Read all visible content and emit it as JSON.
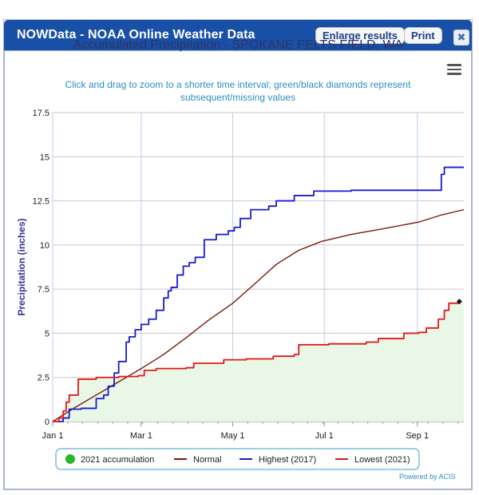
{
  "window": {
    "title": "NOWData - NOAA Online Weather Data",
    "enlarge_label": "Enlarge results",
    "print_label": "Print",
    "close_label": "✖"
  },
  "powered_by": "Powered by ACIS",
  "chart_data": {
    "type": "area",
    "title": "Accumulated Precipitation - SPOKANE FELTS FIELD, WA",
    "subtitle": "Click and drag to zoom to a shorter time interval; green/black diamonds represent subsequent/missing values",
    "xlabel": "",
    "ylabel": "Precipitation (inches)",
    "x_unit": "day of year",
    "xlim": [
      1,
      275
    ],
    "ylim": [
      0,
      17.5
    ],
    "yticks": [
      0,
      2.5,
      5,
      7.5,
      10,
      12.5,
      15,
      17.5
    ],
    "ytick_labels": [
      "0",
      "2.5",
      "5",
      "7.5",
      "10",
      "12.5",
      "15",
      "17.5"
    ],
    "xticks": [
      1,
      60,
      121,
      182,
      244
    ],
    "xtick_labels": [
      "Jan 1",
      "Mar 1",
      "May 1",
      "Jul 1",
      "Sep 1"
    ],
    "grid": true,
    "legend_position": "bottom",
    "series": [
      {
        "name": "2021 accumulation",
        "style": "area",
        "color": "#2bb52b",
        "fill": "#e9f7e6",
        "points": [
          [
            1,
            0
          ],
          [
            5,
            0.2
          ],
          [
            8,
            0.6
          ],
          [
            10,
            1.1
          ],
          [
            12,
            1.5
          ],
          [
            18,
            2.4
          ],
          [
            30,
            2.5
          ],
          [
            45,
            2.55
          ],
          [
            58,
            2.6
          ],
          [
            62,
            2.9
          ],
          [
            70,
            3.0
          ],
          [
            90,
            3.05
          ],
          [
            95,
            3.3
          ],
          [
            115,
            3.5
          ],
          [
            130,
            3.55
          ],
          [
            148,
            3.7
          ],
          [
            162,
            3.8
          ],
          [
            165,
            4.35
          ],
          [
            185,
            4.4
          ],
          [
            210,
            4.5
          ],
          [
            218,
            4.7
          ],
          [
            235,
            5.0
          ],
          [
            245,
            5.05
          ],
          [
            250,
            5.3
          ],
          [
            258,
            5.8
          ],
          [
            262,
            6.3
          ],
          [
            265,
            6.7
          ],
          [
            272,
            6.8
          ]
        ]
      },
      {
        "name": "Normal",
        "style": "line",
        "color": "#7a1a0a",
        "points": [
          [
            1,
            0
          ],
          [
            15,
            0.75
          ],
          [
            30,
            1.5
          ],
          [
            45,
            2.25
          ],
          [
            60,
            3.0
          ],
          [
            75,
            3.8
          ],
          [
            90,
            4.75
          ],
          [
            105,
            5.75
          ],
          [
            121,
            6.7
          ],
          [
            135,
            7.75
          ],
          [
            150,
            8.9
          ],
          [
            165,
            9.7
          ],
          [
            180,
            10.2
          ],
          [
            200,
            10.6
          ],
          [
            220,
            10.9
          ],
          [
            245,
            11.3
          ],
          [
            260,
            11.7
          ],
          [
            275,
            12.0
          ]
        ]
      },
      {
        "name": "Highest (2017)",
        "style": "line",
        "color": "#1a1ad0",
        "points": [
          [
            1,
            0
          ],
          [
            8,
            0.2
          ],
          [
            12,
            0.7
          ],
          [
            20,
            0.75
          ],
          [
            30,
            1.3
          ],
          [
            35,
            1.5
          ],
          [
            38,
            2.0
          ],
          [
            42,
            2.75
          ],
          [
            45,
            3.4
          ],
          [
            48,
            3.4
          ],
          [
            50,
            4.5
          ],
          [
            52,
            4.8
          ],
          [
            56,
            5.2
          ],
          [
            60,
            5.5
          ],
          [
            65,
            5.8
          ],
          [
            70,
            6.3
          ],
          [
            75,
            7.0
          ],
          [
            78,
            7.4
          ],
          [
            80,
            7.6
          ],
          [
            84,
            8.3
          ],
          [
            88,
            8.8
          ],
          [
            92,
            9.0
          ],
          [
            96,
            9.3
          ],
          [
            102,
            10.3
          ],
          [
            110,
            10.6
          ],
          [
            118,
            10.8
          ],
          [
            122,
            11.0
          ],
          [
            126,
            11.5
          ],
          [
            133,
            12.0
          ],
          [
            145,
            12.2
          ],
          [
            150,
            12.5
          ],
          [
            162,
            12.8
          ],
          [
            175,
            13.05
          ],
          [
            185,
            13.05
          ],
          [
            200,
            13.1
          ],
          [
            230,
            13.1
          ],
          [
            258,
            13.1
          ],
          [
            260,
            14.0
          ],
          [
            262,
            14.4
          ],
          [
            275,
            14.4
          ]
        ]
      },
      {
        "name": "Lowest (2021)",
        "style": "line",
        "color": "#e01818",
        "points": [
          [
            1,
            0
          ],
          [
            5,
            0.2
          ],
          [
            8,
            0.6
          ],
          [
            10,
            1.1
          ],
          [
            12,
            1.5
          ],
          [
            18,
            2.4
          ],
          [
            30,
            2.5
          ],
          [
            45,
            2.55
          ],
          [
            58,
            2.6
          ],
          [
            62,
            2.9
          ],
          [
            70,
            3.0
          ],
          [
            90,
            3.05
          ],
          [
            95,
            3.3
          ],
          [
            115,
            3.5
          ],
          [
            130,
            3.55
          ],
          [
            148,
            3.7
          ],
          [
            162,
            3.8
          ],
          [
            165,
            4.35
          ],
          [
            185,
            4.4
          ],
          [
            210,
            4.5
          ],
          [
            218,
            4.7
          ],
          [
            235,
            5.0
          ],
          [
            245,
            5.05
          ],
          [
            250,
            5.3
          ],
          [
            258,
            5.8
          ],
          [
            262,
            6.3
          ],
          [
            265,
            6.7
          ],
          [
            272,
            6.8
          ]
        ]
      }
    ],
    "marker": {
      "x": 272,
      "y": 6.8,
      "shape": "diamond",
      "color": "#111111"
    }
  }
}
